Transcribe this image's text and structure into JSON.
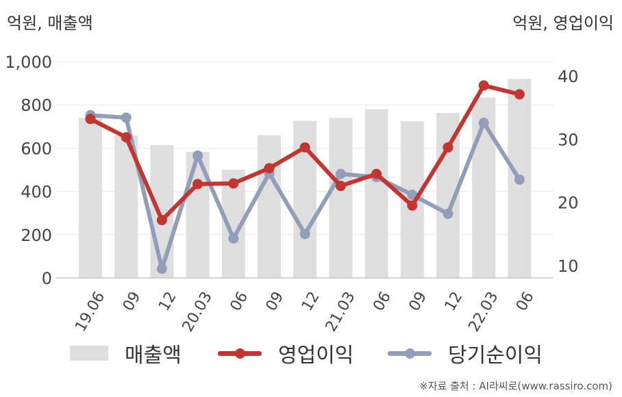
{
  "unit_left": "억원, 매출액",
  "unit_right": "억원, 영업이익",
  "source": "※자료 출처 : AI라씨로(www.rassiro.com)",
  "colors": {
    "bar": "#dedede",
    "operating_profit": "#c23531",
    "net_income": "#929db9",
    "grid": "#e8e8e8",
    "axis": "#bbbbbb"
  },
  "chart_data": {
    "type": "bar",
    "categories": [
      "19.06",
      "09",
      "12",
      "20.03",
      "06",
      "09",
      "12",
      "21.03",
      "06",
      "09",
      "12",
      "22.03",
      "06"
    ],
    "series": [
      {
        "name": "매출액",
        "type": "bar",
        "axis": "left",
        "values": [
          740,
          658,
          614,
          582,
          500,
          660,
          726,
          740,
          780,
          724,
          762,
          834,
          920
        ]
      },
      {
        "name": "영업이익",
        "type": "line",
        "axis": "right",
        "values": [
          33.2,
          30.3,
          17.2,
          22.9,
          23.0,
          25.4,
          28.7,
          22.6,
          24.5,
          19.5,
          28.7,
          38.5,
          37.1
        ]
      },
      {
        "name": "당기순이익",
        "type": "line",
        "axis": "right",
        "values": [
          33.8,
          33.4,
          9.5,
          27.4,
          14.3,
          24.6,
          15.0,
          24.5,
          24.0,
          21.2,
          18.2,
          32.6,
          23.6
        ]
      }
    ],
    "y_left": {
      "min": 0,
      "max": 1000,
      "ticks": [
        0,
        200,
        400,
        600,
        800,
        1000
      ],
      "tick_labels": [
        "0",
        "200",
        "400",
        "600",
        "800",
        "1,000"
      ]
    },
    "y_right": {
      "min": 6,
      "max": 40,
      "ticks": [
        10,
        20,
        30,
        40
      ],
      "tick_labels": [
        "10",
        "20",
        "30",
        "40"
      ]
    },
    "grid": true,
    "legend_position": "bottom"
  }
}
